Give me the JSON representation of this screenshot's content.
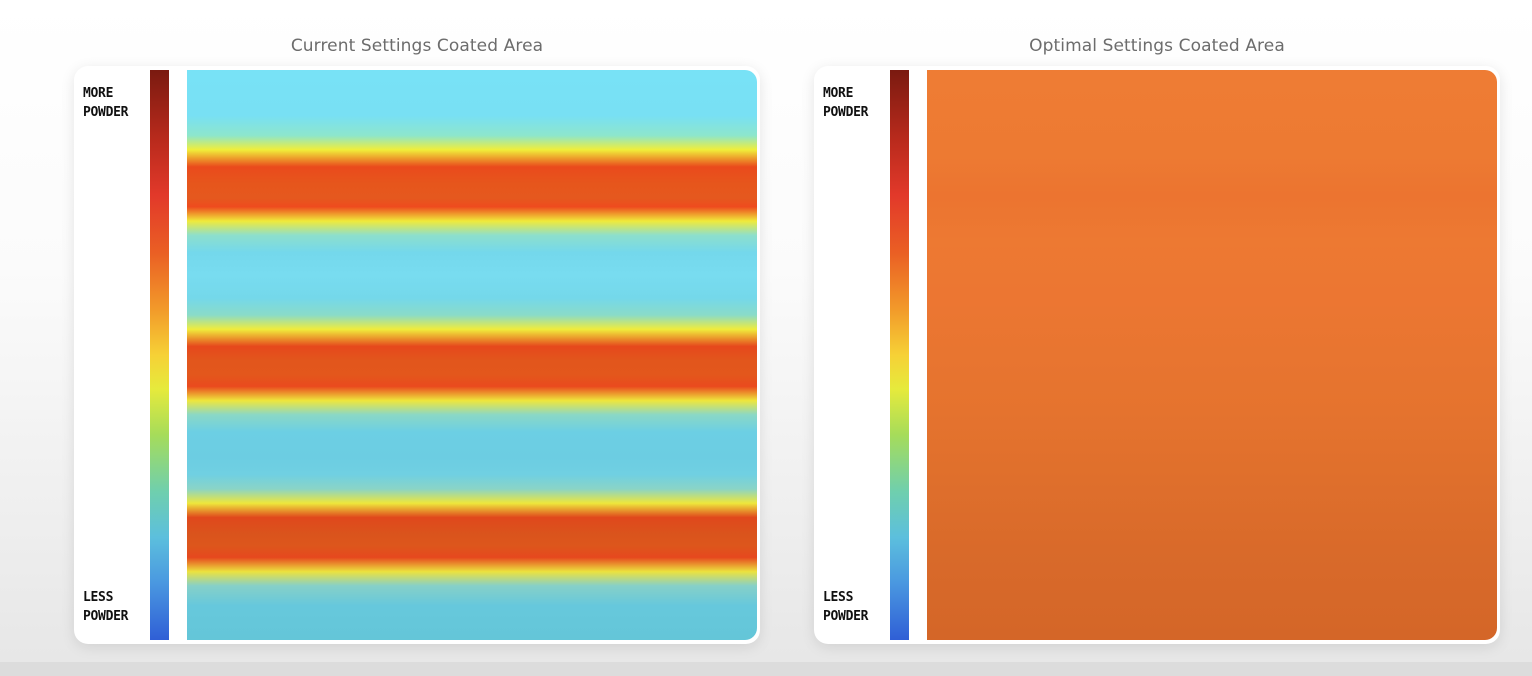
{
  "panels": [
    {
      "title": "Current Settings Coated Area",
      "scale_top_label": [
        "MORE",
        "POWDER"
      ],
      "scale_bottom_label": [
        "LESS",
        "POWDER"
      ]
    },
    {
      "title": "Optimal Settings Coated Area",
      "scale_top_label": [
        "MORE",
        "POWDER"
      ],
      "scale_bottom_label": [
        "LESS",
        "POWDER"
      ]
    }
  ],
  "colors": {
    "colorbar_top": "#7a1a10",
    "colorbar_mid": "#f6d136",
    "colorbar_bottom": "#2f5fd6",
    "current_base": "#78e0f4",
    "current_band": "#e5581e",
    "optimal_fill": "#ec7632"
  }
}
